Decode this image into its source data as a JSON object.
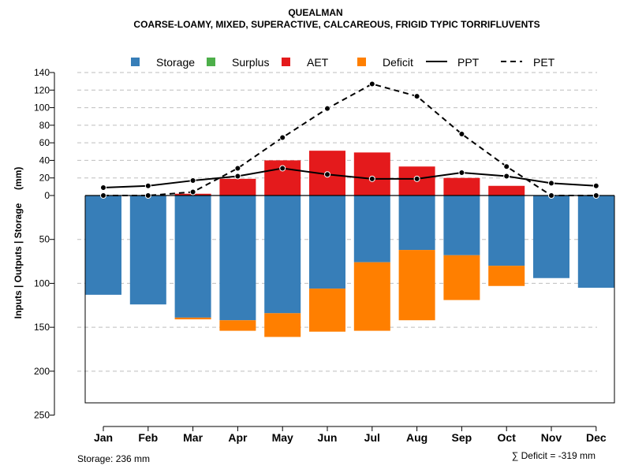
{
  "chart_data": {
    "type": "bar",
    "title": "QUEALMAN",
    "subtitle": "COARSE-LOAMY, MIXED, SUPERACTIVE, CALCAREOUS, FRIGID TYPIC TORRIFLUVENTS",
    "ylabel": "Inputs | Outputs | Storage     (mm)",
    "categories": [
      "Jan",
      "Feb",
      "Mar",
      "Apr",
      "May",
      "Jun",
      "Jul",
      "Aug",
      "Sep",
      "Oct",
      "Nov",
      "Dec"
    ],
    "y_ticks_upper": [
      "140",
      "120",
      "100",
      "80",
      "60",
      "40",
      "20",
      "0"
    ],
    "y_ticks_lower": [
      "50",
      "100",
      "150",
      "200",
      "250"
    ],
    "ylim": [
      -250,
      140
    ],
    "storage_capacity": 236,
    "legend": {
      "storage": "Storage",
      "surplus": "Surplus",
      "aet": "AET",
      "deficit": "Deficit",
      "ppt": "PPT",
      "pet": "PET"
    },
    "series": {
      "storage": [
        113,
        124,
        139,
        142,
        134,
        106,
        76,
        62,
        68,
        80,
        94,
        105
      ],
      "surplus": [
        0,
        0,
        0,
        0,
        0,
        0,
        0,
        0,
        0,
        0,
        0,
        0
      ],
      "aet": [
        0,
        0,
        2,
        19,
        40,
        51,
        49,
        33,
        20,
        11,
        0,
        0
      ],
      "deficit": [
        0,
        0,
        2,
        12,
        27,
        49,
        78,
        80,
        51,
        23,
        0,
        0
      ],
      "ppt": [
        9,
        11,
        17,
        22,
        31,
        24,
        19,
        19,
        26,
        22,
        14,
        11
      ],
      "pet": [
        0,
        0,
        4,
        31,
        66,
        99,
        127,
        113,
        70,
        33,
        0,
        0
      ]
    },
    "colors": {
      "storage": "#377EB8",
      "surplus": "#4DAF4A",
      "aet": "#E41A1C",
      "deficit": "#FF7F00",
      "grid": "#BEBEBE"
    },
    "footer_left": "Storage: 236 mm",
    "footer_right": "∑ Deficit = -319 mm"
  }
}
